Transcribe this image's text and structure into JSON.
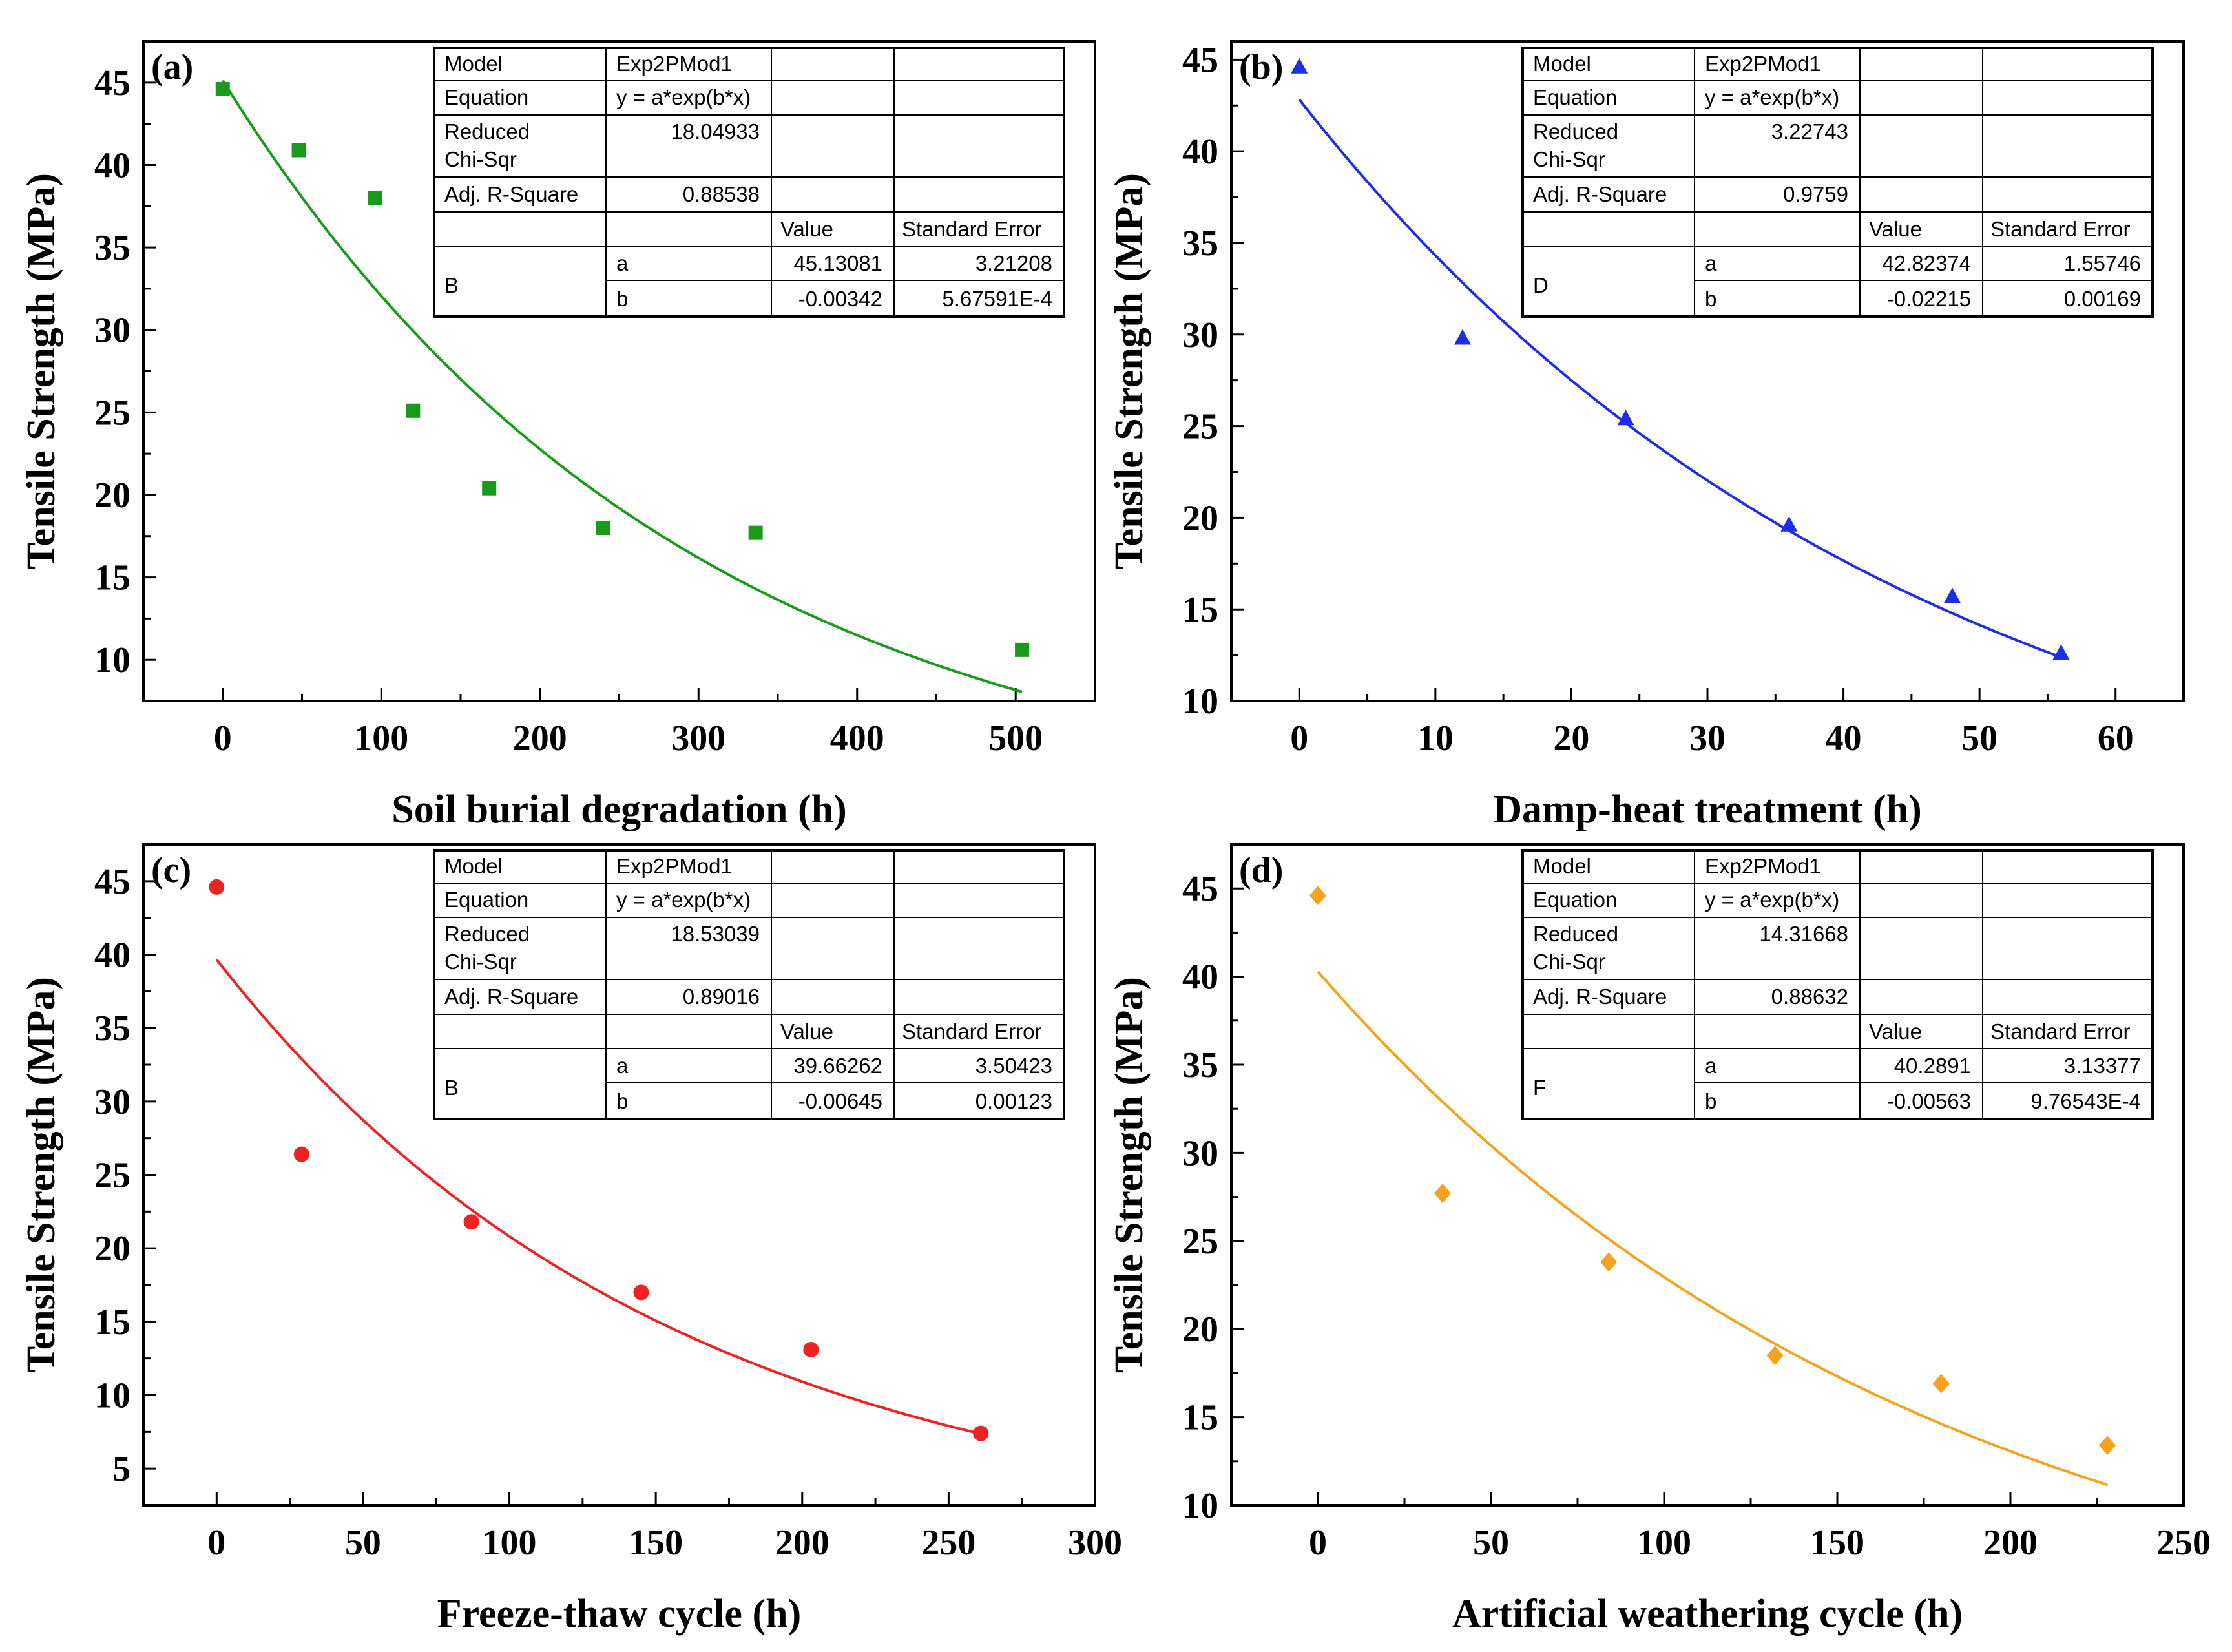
{
  "figure": {
    "background": "#ffffff"
  },
  "chart_data": [
    {
      "id": "a",
      "type": "scatter",
      "panel_label": "(a)",
      "xlabel": "Soil burial degradation (h)",
      "ylabel": "Tensile Strength (MPa)",
      "xlim": [
        -50,
        550
      ],
      "ylim": [
        7.5,
        47.5
      ],
      "xticks": [
        0,
        100,
        200,
        300,
        400,
        500
      ],
      "yticks": [
        10,
        15,
        20,
        25,
        30,
        35,
        40,
        45
      ],
      "marker": "square",
      "color": "#1a9a1a",
      "points": [
        [
          0,
          44.6
        ],
        [
          48,
          40.9
        ],
        [
          96,
          38.0
        ],
        [
          120,
          25.1
        ],
        [
          168,
          20.4
        ],
        [
          240,
          18.0
        ],
        [
          336,
          17.7
        ],
        [
          504,
          10.6
        ]
      ],
      "fit": {
        "a": 45.13081,
        "b": -0.00342,
        "x_range": [
          0,
          504
        ]
      },
      "table": {
        "model_label": "Model",
        "model_value": "Exp2PMod1",
        "equation_label": "Equation",
        "equation_value": "y = a*exp(b*x)",
        "rcs_label_1": "Reduced",
        "rcs_label_2": "Chi-Sqr",
        "rcs_value": "18.04933",
        "adj_label": "Adj. R-Square",
        "adj_value": "0.88538",
        "value_header": "Value",
        "se_header": "Standard Error",
        "series_name": "B",
        "param_a": "a",
        "a_value": "45.13081",
        "a_se": "3.21208",
        "param_b": "b",
        "b_value": "-0.00342",
        "b_se": "5.67591E-4"
      }
    },
    {
      "id": "b",
      "type": "scatter",
      "panel_label": "(b)",
      "xlabel": "Damp-heat treatment (h)",
      "ylabel": "Tensile Strength (MPa)",
      "xlim": [
        -5,
        65
      ],
      "ylim": [
        10,
        46
      ],
      "xticks": [
        0,
        10,
        20,
        30,
        40,
        50,
        60
      ],
      "yticks": [
        10,
        15,
        20,
        25,
        30,
        35,
        40,
        45
      ],
      "marker": "triangle",
      "color": "#1f2ee6",
      "points": [
        [
          0,
          44.6
        ],
        [
          12,
          29.8
        ],
        [
          24,
          25.4
        ],
        [
          36,
          19.6
        ],
        [
          48,
          15.7
        ],
        [
          56,
          12.6
        ]
      ],
      "fit": {
        "a": 42.82374,
        "b": -0.02215,
        "x_range": [
          0,
          56
        ]
      },
      "table": {
        "model_label": "Model",
        "model_value": "Exp2PMod1",
        "equation_label": "Equation",
        "equation_value": "y = a*exp(b*x)",
        "rcs_label_1": "Reduced",
        "rcs_label_2": "Chi-Sqr",
        "rcs_value": "3.22743",
        "adj_label": "Adj. R-Square",
        "adj_value": "0.9759",
        "value_header": "Value",
        "se_header": "Standard Error",
        "series_name": "D",
        "param_a": "a",
        "a_value": "42.82374",
        "a_se": "1.55746",
        "param_b": "b",
        "b_value": "-0.02215",
        "b_se": "0.00169"
      }
    },
    {
      "id": "c",
      "type": "scatter",
      "panel_label": "(c)",
      "xlabel": "Freeze-thaw cycle (h)",
      "ylabel": "Tensile Strength (MPa)",
      "xlim": [
        -25,
        300
      ],
      "ylim": [
        2.5,
        47.5
      ],
      "xticks": [
        0,
        50,
        100,
        150,
        200,
        250,
        300
      ],
      "yticks": [
        5,
        10,
        15,
        20,
        25,
        30,
        35,
        40,
        45
      ],
      "marker": "circle",
      "color": "#ee2222",
      "points": [
        [
          0,
          44.6
        ],
        [
          29,
          26.4
        ],
        [
          87,
          21.8
        ],
        [
          145,
          17.0
        ],
        [
          203,
          13.1
        ],
        [
          261,
          7.4
        ]
      ],
      "fit": {
        "a": 39.66262,
        "b": -0.00645,
        "x_range": [
          0,
          261
        ]
      },
      "table": {
        "model_label": "Model",
        "model_value": "Exp2PMod1",
        "equation_label": "Equation",
        "equation_value": "y = a*exp(b*x)",
        "rcs_label_1": "Reduced",
        "rcs_label_2": "Chi-Sqr",
        "rcs_value": "18.53039",
        "adj_label": "Adj. R-Square",
        "adj_value": "0.89016",
        "value_header": "Value",
        "se_header": "Standard Error",
        "series_name": "B",
        "param_a": "a",
        "a_value": "39.66262",
        "a_se": "3.50423",
        "param_b": "b",
        "b_value": "-0.00645",
        "b_se": "0.00123"
      }
    },
    {
      "id": "d",
      "type": "scatter",
      "panel_label": "(d)",
      "xlabel": "Artificial weathering cycle (h)",
      "ylabel": "Tensile Strength (MPa)",
      "xlim": [
        -25,
        250
      ],
      "ylim": [
        10,
        47.5
      ],
      "xticks": [
        0,
        50,
        100,
        150,
        200,
        250
      ],
      "yticks": [
        10,
        15,
        20,
        25,
        30,
        35,
        40,
        45
      ],
      "marker": "diamond",
      "color": "#f5a21c",
      "points": [
        [
          0,
          44.6
        ],
        [
          36,
          27.7
        ],
        [
          84,
          23.8
        ],
        [
          132,
          18.5
        ],
        [
          180,
          16.9
        ],
        [
          228,
          13.4
        ]
      ],
      "fit": {
        "a": 40.2891,
        "b": -0.00563,
        "x_range": [
          0,
          228
        ]
      },
      "table": {
        "model_label": "Model",
        "model_value": "Exp2PMod1",
        "equation_label": "Equation",
        "equation_value": "y = a*exp(b*x)",
        "rcs_label_1": "Reduced",
        "rcs_label_2": "Chi-Sqr",
        "rcs_value": "14.31668",
        "adj_label": "Adj. R-Square",
        "adj_value": "0.88632",
        "value_header": "Value",
        "se_header": "Standard Error",
        "series_name": "F",
        "param_a": "a",
        "a_value": "40.2891",
        "a_se": "3.13377",
        "param_b": "b",
        "b_value": "-0.00563",
        "b_se": "9.76543E-4"
      }
    }
  ]
}
